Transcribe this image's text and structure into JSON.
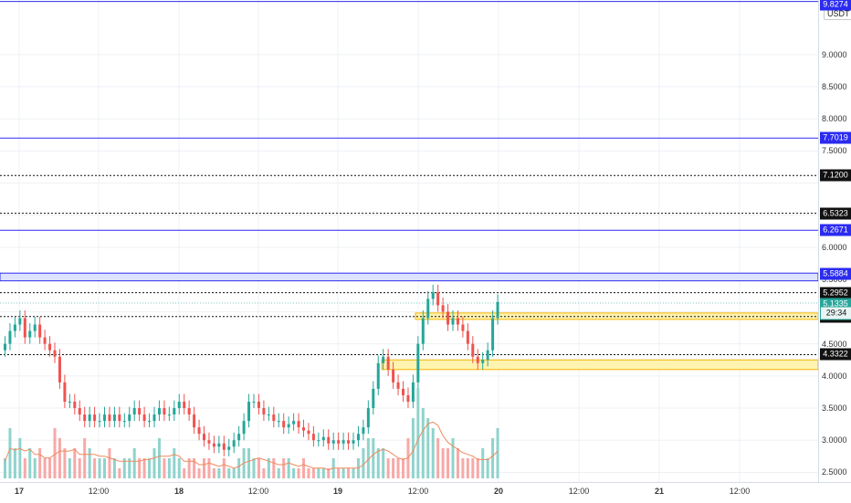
{
  "price_axis": {
    "unit": "USDT",
    "ticks": [
      "9.0000",
      "8.5000",
      "8.0000",
      "7.5000",
      "6.0000",
      "5.5000",
      "4.5000",
      "4.0000",
      "3.5000",
      "3.0000",
      "2.5000"
    ],
    "top_tag": "9.8274"
  },
  "levels": [
    {
      "price": 9.8274,
      "style": "solid-blue",
      "label": "9.8274"
    },
    {
      "price": 7.7019,
      "style": "solid-blue",
      "label": "7.7019"
    },
    {
      "price": 7.12,
      "style": "dotted-black",
      "label": "7.1200"
    },
    {
      "price": 6.5323,
      "style": "dotted-black",
      "label": "6.5323"
    },
    {
      "price": 6.2671,
      "style": "solid-blue",
      "label": "6.2671"
    },
    {
      "price": 5.5884,
      "style": "blue-zone",
      "label": "5.5884"
    },
    {
      "price": 5.2952,
      "style": "dotted-black",
      "label": "5.2952"
    },
    {
      "price": 4.9244,
      "style": "dotted-black",
      "label": "4.9244"
    },
    {
      "price": 4.3322,
      "style": "dotted-black",
      "label": "4.3322"
    }
  ],
  "current_price": {
    "label": "5.1335",
    "countdown": "29:34"
  },
  "zones": [
    {
      "name": "yellow-zone-upper",
      "top": 4.98,
      "bottom": 4.88
    },
    {
      "name": "yellow-zone-lower",
      "top": 4.25,
      "bottom": 4.1
    }
  ],
  "time_axis": {
    "ticks": [
      {
        "label": "17",
        "bold": true
      },
      {
        "label": "12:00",
        "bold": false
      },
      {
        "label": "18",
        "bold": true
      },
      {
        "label": "12:00",
        "bold": false
      },
      {
        "label": "19",
        "bold": true
      },
      {
        "label": "12:00",
        "bold": false
      },
      {
        "label": "20",
        "bold": true
      },
      {
        "label": "12:00",
        "bold": false
      },
      {
        "label": "21",
        "bold": true
      },
      {
        "label": "12:00",
        "bold": false
      }
    ]
  },
  "colors": {
    "up": "#26a69a",
    "down": "#ef5350",
    "up_volume": "#8fd3cc",
    "down_volume": "#f7a9a7",
    "level_blue": "#2b2bf0",
    "zone_yellow": "#fff3b0",
    "zone_yellow_border": "#f5b400",
    "zone_blue": "#dde3ff"
  },
  "chart_data": {
    "type": "candlestick",
    "y_range": [
      2.35,
      9.85
    ],
    "close_series": [
      4.5,
      4.7,
      4.8,
      4.9,
      4.6,
      4.7,
      4.8,
      4.6,
      4.5,
      4.4,
      4.3,
      3.9,
      3.6,
      3.6,
      3.5,
      3.4,
      3.3,
      3.4,
      3.3,
      3.3,
      3.4,
      3.3,
      3.4,
      3.3,
      3.3,
      3.4,
      3.5,
      3.4,
      3.3,
      3.3,
      3.4,
      3.5,
      3.4,
      3.4,
      3.5,
      3.6,
      3.5,
      3.4,
      3.2,
      3.1,
      3.0,
      2.95,
      2.9,
      2.95,
      2.85,
      2.9,
      3.0,
      3.1,
      3.3,
      3.6,
      3.6,
      3.5,
      3.4,
      3.4,
      3.3,
      3.3,
      3.2,
      3.25,
      3.3,
      3.2,
      3.15,
      3.1,
      3.0,
      3.0,
      3.05,
      2.95,
      3.0,
      2.95,
      3.0,
      2.95,
      3.0,
      3.1,
      3.2,
      3.5,
      3.8,
      4.2,
      4.3,
      4.1,
      3.9,
      3.8,
      3.7,
      3.6,
      3.9,
      4.5,
      4.9,
      5.2,
      5.3,
      5.1,
      5.0,
      4.8,
      4.9,
      4.8,
      4.7,
      4.5,
      4.3,
      4.2,
      4.25,
      4.4,
      4.9,
      5.15
    ],
    "volume_series": [
      2,
      5,
      3,
      4,
      2,
      3,
      2,
      3,
      2,
      2,
      5,
      4,
      3,
      2,
      3,
      2,
      4,
      3,
      2,
      2,
      2,
      3,
      2,
      1,
      2,
      2,
      3,
      2,
      2,
      2,
      3,
      4,
      2,
      2,
      3,
      2,
      1,
      2,
      2,
      1,
      2,
      2,
      1,
      1,
      2,
      1,
      1,
      2,
      3,
      3,
      2,
      2,
      1,
      2,
      2,
      1,
      2,
      2,
      1,
      1,
      2,
      1,
      1,
      1,
      1,
      1,
      2,
      1,
      1,
      1,
      1,
      2,
      3,
      4,
      4,
      3,
      3,
      2,
      2,
      2,
      2,
      4,
      6,
      9,
      7,
      6,
      5,
      4,
      3,
      3,
      4,
      3,
      2,
      2,
      2,
      2,
      3,
      2,
      4,
      5
    ]
  }
}
